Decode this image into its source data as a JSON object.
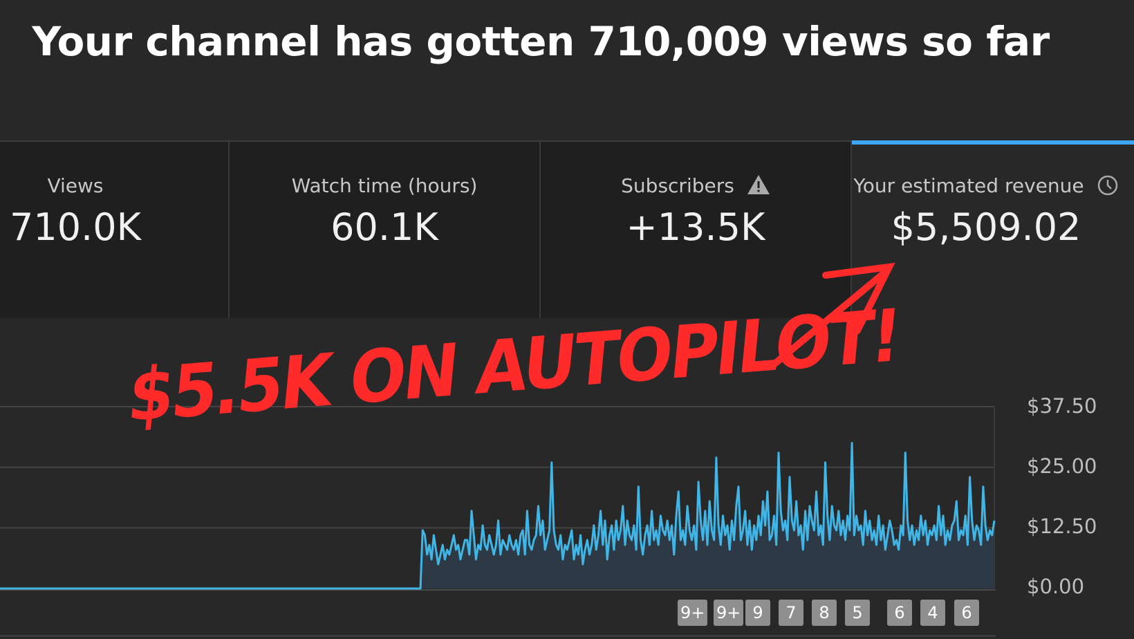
{
  "headline": "Your channel has gotten 710,009 views so far",
  "metrics": [
    {
      "label": "Views",
      "value": "710.0K"
    },
    {
      "label": "Watch time (hours)",
      "value": "60.1K"
    },
    {
      "label": "Subscribers",
      "value": "+13.5K",
      "icon": "warning-triangle-icon"
    },
    {
      "label": "Your estimated revenue",
      "value": "$5,509.02",
      "icon": "clock-icon",
      "selected": true
    }
  ],
  "colors": {
    "accent": "#3ea6ff",
    "series": "#41b6e6",
    "overlay": "#ff2a2a"
  },
  "overlay": {
    "text": "$5.5K ON AUTOPILOT!"
  },
  "chart_data": {
    "type": "area",
    "series": [
      {
        "values": [
          0,
          0,
          0,
          0,
          0,
          0,
          0,
          0,
          0,
          0,
          0,
          0,
          0,
          0,
          0,
          0,
          0,
          0,
          0,
          0,
          0,
          0,
          0,
          0,
          0,
          0,
          0,
          0,
          0,
          0,
          0,
          0,
          0,
          0,
          0,
          0,
          0,
          0,
          0,
          0,
          0,
          0,
          0,
          0,
          0,
          0,
          0,
          0,
          0,
          0,
          0,
          0,
          0,
          0,
          0,
          0,
          0,
          0,
          0,
          0,
          0,
          0,
          0,
          0,
          0,
          0,
          0,
          0,
          0,
          0,
          0,
          0,
          0,
          0,
          0,
          0,
          0,
          0,
          0,
          0,
          0,
          0,
          0,
          0,
          0,
          0,
          0,
          0,
          0,
          0,
          0,
          0,
          0,
          0,
          0,
          0,
          0,
          0,
          0,
          0,
          0,
          0,
          0,
          0,
          0,
          0,
          0,
          0,
          0,
          0,
          0,
          0,
          0,
          0,
          0,
          0,
          0,
          0,
          0,
          0,
          0,
          0,
          0,
          0,
          0,
          0,
          0,
          0,
          0,
          0,
          0,
          0,
          0,
          0,
          0,
          0,
          0,
          0,
          0,
          0,
          0,
          0,
          0,
          0,
          0,
          0,
          0,
          0,
          0,
          0,
          0,
          0,
          0,
          0,
          0,
          0,
          0,
          0,
          0,
          0,
          0,
          0,
          0,
          0,
          0,
          0,
          0,
          0,
          0,
          0,
          0,
          0,
          0,
          0,
          0,
          0,
          0,
          0,
          0,
          0,
          0,
          0,
          0,
          0,
          0,
          0,
          0,
          0,
          0,
          0,
          12,
          11,
          7,
          9,
          6,
          11,
          8,
          5,
          7,
          9,
          6,
          8,
          7,
          9,
          11,
          8,
          9,
          6,
          8,
          10,
          10,
          7,
          16,
          11,
          6,
          9,
          8,
          13,
          9,
          8,
          11,
          9,
          7,
          9,
          14,
          7,
          10,
          9,
          8,
          11,
          9,
          8,
          10,
          7,
          11,
          12,
          7,
          16,
          9,
          8,
          10,
          11,
          17,
          11,
          14,
          8,
          10,
          12,
          26,
          12,
          9,
          8,
          11,
          6,
          9,
          8,
          10,
          12,
          6,
          9,
          7,
          11,
          5,
          8,
          10,
          7,
          9,
          13,
          8,
          11,
          16,
          9,
          14,
          6,
          11,
          13,
          8,
          14,
          10,
          12,
          17,
          9,
          14,
          11,
          10,
          13,
          8,
          21,
          10,
          7,
          11,
          13,
          9,
          16,
          10,
          12,
          9,
          15,
          12,
          11,
          14,
          10,
          13,
          7,
          15,
          20,
          10,
          12,
          9,
          17,
          12,
          10,
          13,
          8,
          22,
          14,
          10,
          16,
          9,
          18,
          12,
          10,
          27,
          13,
          9,
          15,
          11,
          13,
          8,
          14,
          10,
          17,
          21,
          10,
          12,
          16,
          9,
          14,
          8,
          13,
          10,
          15,
          11,
          18,
          13,
          20,
          10,
          11,
          15,
          9,
          28,
          16,
          12,
          14,
          10,
          23,
          14,
          12,
          18,
          11,
          13,
          8,
          16,
          10,
          17,
          14,
          12,
          20,
          11,
          13,
          9,
          26,
          15,
          10,
          17,
          13,
          12,
          16,
          11,
          14,
          10,
          15,
          12,
          30,
          11,
          15,
          12,
          13,
          9,
          16,
          11,
          14,
          10,
          12,
          9,
          15,
          10,
          13,
          8,
          11,
          14,
          12,
          9,
          10,
          8,
          13,
          11,
          28,
          14,
          10,
          13,
          9,
          12,
          10,
          15,
          11,
          14,
          9,
          12,
          11,
          13,
          10,
          17,
          11,
          15,
          9,
          12,
          10,
          13,
          14,
          18,
          10,
          12,
          11,
          15,
          9,
          23,
          14,
          10,
          13,
          12,
          9,
          21,
          13,
          10,
          12,
          11,
          14
        ]
      }
    ],
    "y_ticks": [
      "$37.50",
      "$25.00",
      "$12.50",
      "$0.00"
    ],
    "ylim": [
      0,
      37.5
    ]
  },
  "annotation_badges": [
    "9+",
    "9+",
    "9",
    "7",
    "8",
    "5",
    "6",
    "4",
    "6"
  ]
}
